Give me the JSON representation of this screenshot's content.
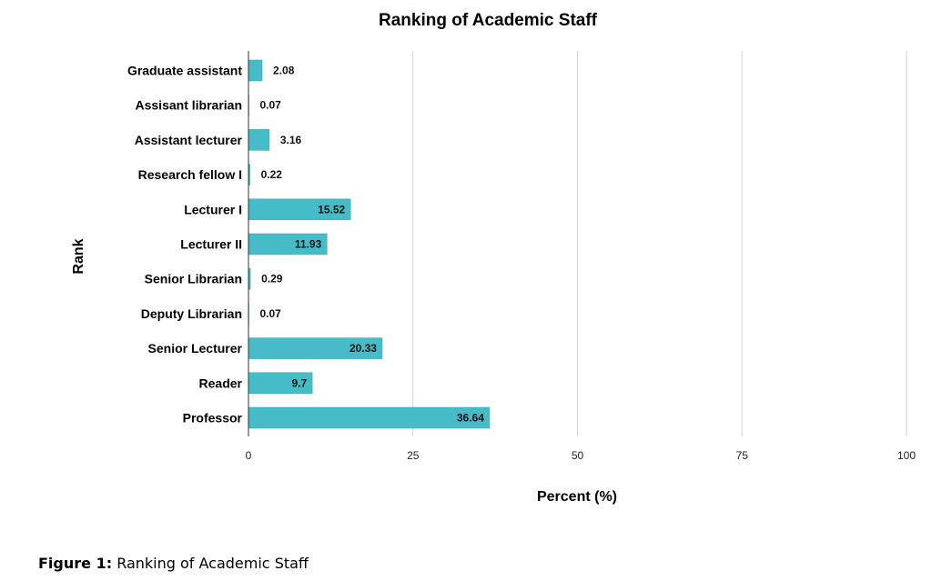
{
  "chart_data": {
    "type": "bar",
    "orientation": "horizontal",
    "title": "Ranking of Academic Staff",
    "xlabel": "Percent (%)",
    "ylabel": "Rank",
    "xlim": [
      0,
      100
    ],
    "xticks": [
      0,
      25,
      50,
      75,
      100
    ],
    "grid": true,
    "bar_color": "#45BCC8",
    "categories": [
      "Graduate assistant",
      "Assisant librarian",
      "Assistant lecturer",
      "Research fellow I",
      "Lecturer I",
      "Lecturer II",
      "Senior Librarian",
      "Deputy Librarian",
      "Senior Lecturer",
      "Reader",
      "Professor"
    ],
    "values": [
      2.08,
      0.07,
      3.16,
      0.22,
      15.52,
      11.93,
      0.29,
      0.07,
      20.33,
      9.7,
      36.64
    ],
    "data_labels": [
      "2.08",
      "0.07",
      "3.16",
      "0.22",
      "15.52",
      "11.93",
      "0.29",
      "0.07",
      "20.33",
      "9.7",
      "36.64"
    ]
  },
  "caption": {
    "label": "Figure 1:",
    "text": " Ranking of Academic Staff"
  }
}
